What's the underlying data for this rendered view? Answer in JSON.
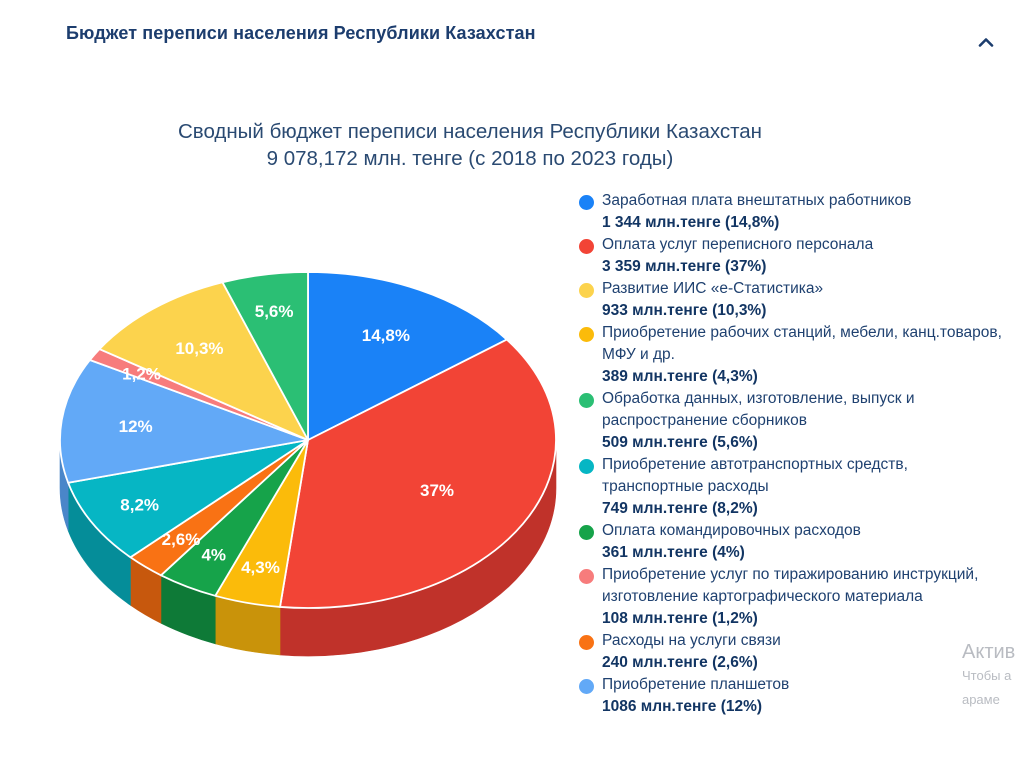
{
  "header": {
    "title": "Бюджет переписи населения Республики Казахстан"
  },
  "chart_data": {
    "type": "pie",
    "title": "Сводный бюджет переписи населения Республики Казахстан",
    "subtitle": "9 078,172 млн. тенге (с 2018 по 2023 годы)",
    "slices": [
      {
        "label": "Заработная плата внештатных работников",
        "value_text": "1 344 млн.тенге (14,8%)",
        "value": 1344,
        "percent": 14.8,
        "percent_label": "14,8%",
        "color": "#1a82f7",
        "side": "#1465c2"
      },
      {
        "label": "Оплата услуг переписного персонала",
        "value_text": "3 359 млн.тенге (37%)",
        "value": 3359,
        "percent": 37,
        "percent_label": "37%",
        "color": "#f24436",
        "side": "#c0322a"
      },
      {
        "label": "Приобретение рабочих станций, мебели, канц.товаров, МФУ и др.",
        "value_text": "389 млн.тенге (4,3%)",
        "value": 389,
        "percent": 4.3,
        "percent_label": "4,3%",
        "color": "#fbbb0a",
        "side": "#c9930a"
      },
      {
        "label": "Оплата командировочных расходов",
        "value_text": "361 млн.тенге (4%)",
        "value": 361,
        "percent": 4,
        "percent_label": "4%",
        "color": "#16a34a",
        "side": "#0e7a37"
      },
      {
        "label": "Расходы на услуги связи",
        "value_text": "240 млн.тенге (2,6%)",
        "value": 240,
        "percent": 2.6,
        "percent_label": "2,6%",
        "color": "#f97214",
        "side": "#c7580d"
      },
      {
        "label": "Приобретение автотранспортных средств, транспортные расходы",
        "value_text": "749 млн.тенге (8,2%)",
        "value": 749,
        "percent": 8.2,
        "percent_label": "8,2%",
        "color": "#06b6c4",
        "side": "#058d99"
      },
      {
        "label": "Приобретение планшетов",
        "value_text": "1086 млн.тенге (12%)",
        "value": 1086,
        "percent": 12,
        "percent_label": "12%",
        "color": "#62a9f7",
        "side": "#4a86c9"
      },
      {
        "label": "Приобретение услуг по тиражированию инструкций, изготовление картографического материала",
        "value_text": "108 млн.тенге (1,2%)",
        "value": 108,
        "percent": 1.2,
        "percent_label": "1,2%",
        "color": "#f77c7c",
        "side": "#c86262"
      },
      {
        "label": "Развитие ИИС «e-Статистика»",
        "value_text": "933 млн.тенге (10,3%)",
        "value": 933,
        "percent": 10.3,
        "percent_label": "10,3%",
        "color": "#fcd34d",
        "side": "#cba83b"
      },
      {
        "label": "Обработка данных, изготовление, выпуск и распространение сборников",
        "value_text": "509 млн.тенге (5,6%)",
        "value": 509,
        "percent": 5.6,
        "percent_label": "5,6%",
        "color": "#2bbf74",
        "side": "#21965a"
      }
    ],
    "legend_order": [
      0,
      1,
      8,
      2,
      9,
      5,
      3,
      7,
      4,
      6
    ],
    "legend_position": "right"
  },
  "watermark": {
    "title": "Актив",
    "line1": "Чтобы а",
    "line2": "\"Параме"
  }
}
